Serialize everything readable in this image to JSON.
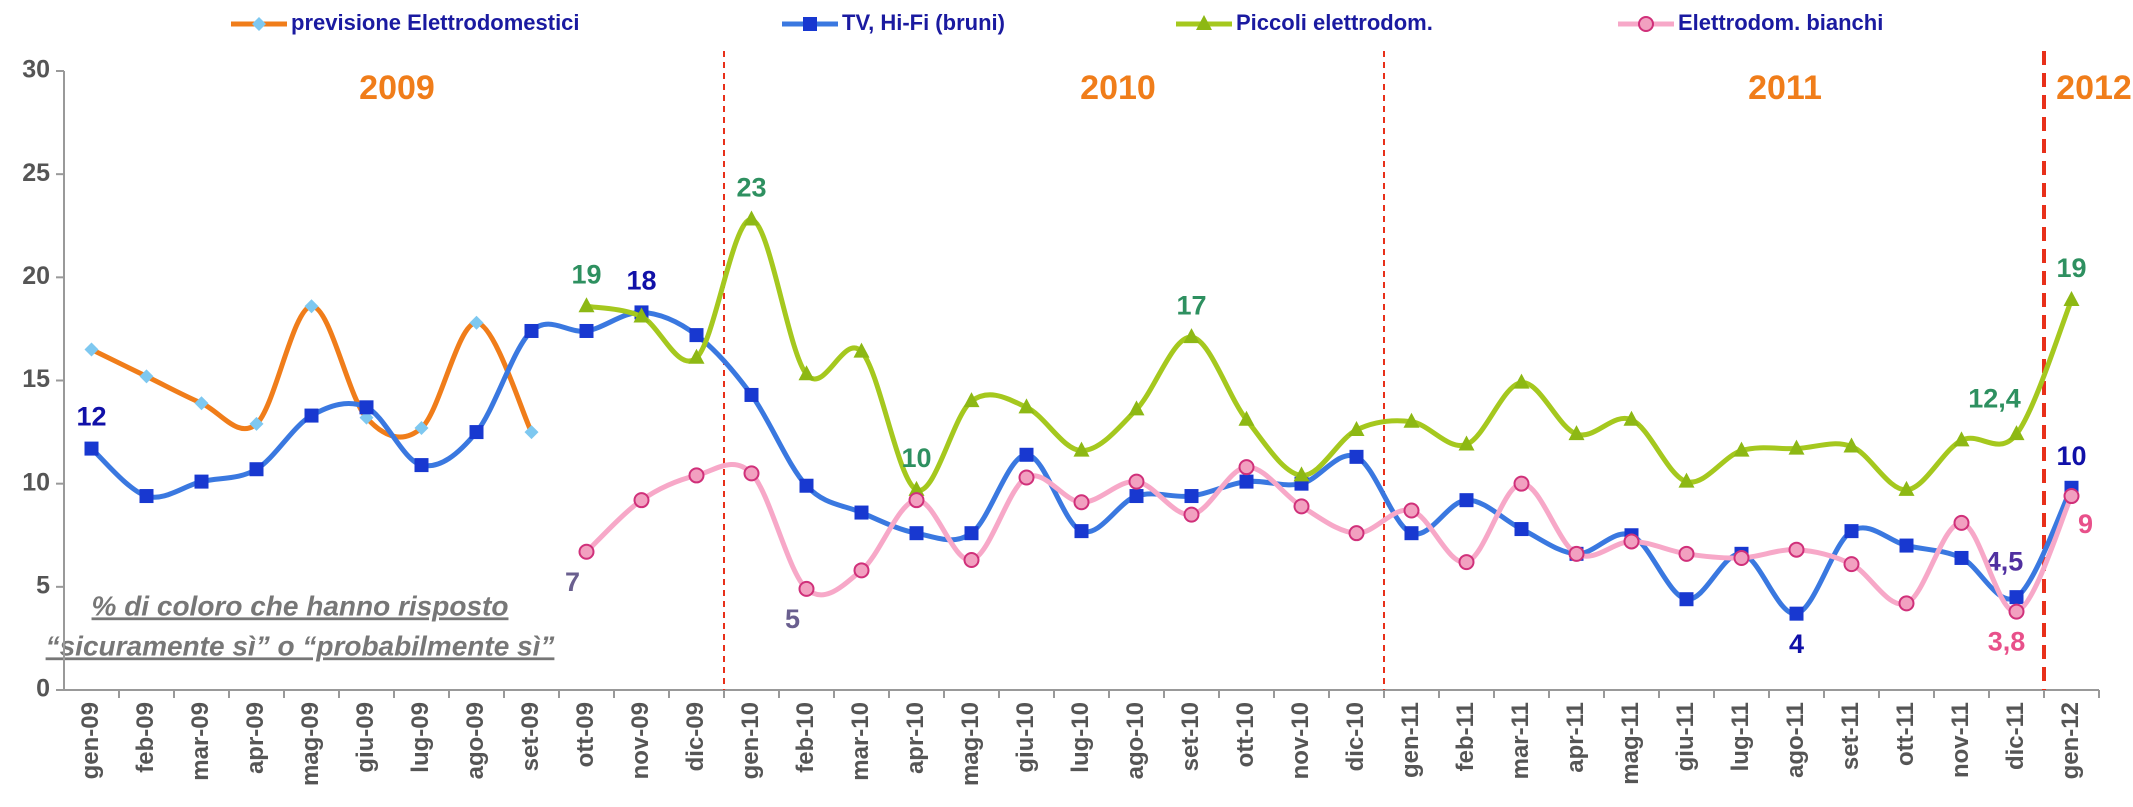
{
  "chart_data": {
    "type": "line",
    "categories": [
      "gen-09",
      "feb-09",
      "mar-09",
      "apr-09",
      "mag-09",
      "giu-09",
      "lug-09",
      "ago-09",
      "set-09",
      "ott-09",
      "nov-09",
      "dic-09",
      "gen-10",
      "feb-10",
      "mar-10",
      "apr-10",
      "mag-10",
      "giu-10",
      "lug-10",
      "ago-10",
      "set-10",
      "ott-10",
      "nov-10",
      "dic-10",
      "gen-11",
      "feb-11",
      "mar-11",
      "apr-11",
      "mag-11",
      "giu-11",
      "lug-11",
      "ago-11",
      "set-11",
      "ott-11",
      "nov-11",
      "dic-11",
      "gen-12"
    ],
    "ylim": [
      0,
      30
    ],
    "yticks": [
      0,
      5,
      10,
      15,
      20,
      25,
      30
    ],
    "grid": false,
    "legend": "top",
    "year_labels": [
      "2009",
      "2010",
      "2011",
      "2012"
    ],
    "note": [
      "% di coloro che hanno risposto",
      "“sicuramente sì” o “probabilmente sì”"
    ],
    "series": [
      {
        "name": "previsione Elettrodomestici",
        "color": "#f07d1a",
        "marker": "diamond",
        "marker_color": "#7ec8f0",
        "label_color": "#f07d1a",
        "values": [
          16.5,
          15.2,
          13.9,
          12.9,
          18.6,
          13.2,
          12.7,
          17.8,
          12.5,
          null,
          null,
          null,
          null,
          null,
          null,
          null,
          null,
          null,
          null,
          null,
          null,
          null,
          null,
          null,
          null,
          null,
          null,
          null,
          null,
          null,
          null,
          null,
          null,
          null,
          null,
          null,
          null
        ]
      },
      {
        "name": "TV, Hi-Fi (bruni)",
        "color": "#3a78e0",
        "marker": "square",
        "marker_color": "#1838d0",
        "label_color": "#1010a8",
        "values": [
          11.7,
          9.4,
          10.1,
          10.7,
          13.3,
          13.7,
          10.9,
          12.5,
          17.4,
          17.4,
          18.3,
          17.2,
          14.3,
          9.9,
          8.6,
          7.6,
          7.6,
          11.4,
          7.7,
          9.4,
          9.4,
          10.1,
          10.0,
          11.3,
          7.6,
          9.2,
          7.8,
          6.6,
          7.5,
          4.4,
          6.6,
          3.7,
          7.7,
          7.0,
          6.4,
          4.5,
          9.8
        ],
        "value_labels": [
          "12",
          null,
          null,
          null,
          null,
          null,
          null,
          null,
          null,
          null,
          "18",
          null,
          null,
          null,
          null,
          null,
          null,
          null,
          null,
          null,
          null,
          null,
          null,
          null,
          null,
          null,
          null,
          null,
          null,
          null,
          null,
          "4",
          null,
          null,
          null,
          "4,5",
          "10"
        ]
      },
      {
        "name": "Piccoli elettrodom.",
        "color": "#a5c81e",
        "marker": "triangle",
        "marker_color": "#8db814",
        "label_color": "#2e9060",
        "values": [
          null,
          null,
          null,
          null,
          null,
          null,
          null,
          null,
          null,
          18.6,
          18.1,
          16.1,
          22.8,
          15.3,
          16.4,
          9.7,
          14.0,
          13.7,
          11.6,
          13.6,
          17.1,
          13.1,
          10.4,
          12.6,
          13.0,
          11.9,
          14.9,
          12.4,
          13.1,
          10.1,
          11.6,
          11.7,
          11.8,
          9.7,
          12.1,
          12.4,
          18.9
        ],
        "value_labels": [
          null,
          null,
          null,
          null,
          null,
          null,
          null,
          null,
          null,
          "19",
          null,
          null,
          "23",
          null,
          null,
          "10",
          null,
          null,
          null,
          null,
          "17",
          null,
          null,
          null,
          null,
          null,
          null,
          null,
          null,
          null,
          null,
          null,
          null,
          null,
          null,
          "12,4",
          "19"
        ]
      },
      {
        "name": "Elettrodom. bianchi",
        "color": "#f7a8c8",
        "marker": "circle",
        "marker_color": "#f2a0c0",
        "label_color": "#e8508a",
        "values": [
          null,
          null,
          null,
          null,
          null,
          null,
          null,
          null,
          null,
          6.7,
          9.2,
          10.4,
          10.5,
          4.9,
          5.8,
          9.2,
          6.3,
          10.3,
          9.1,
          10.1,
          8.5,
          10.8,
          8.9,
          7.6,
          8.7,
          6.2,
          10.0,
          6.6,
          7.2,
          6.6,
          6.4,
          6.8,
          6.1,
          4.2,
          8.1,
          3.8,
          9.4
        ],
        "value_labels": [
          null,
          null,
          null,
          null,
          null,
          null,
          null,
          null,
          null,
          "7",
          null,
          null,
          null,
          "5",
          null,
          null,
          null,
          null,
          null,
          null,
          null,
          null,
          null,
          null,
          null,
          null,
          null,
          null,
          null,
          null,
          null,
          null,
          null,
          null,
          null,
          "3,8",
          "9"
        ]
      }
    ]
  }
}
